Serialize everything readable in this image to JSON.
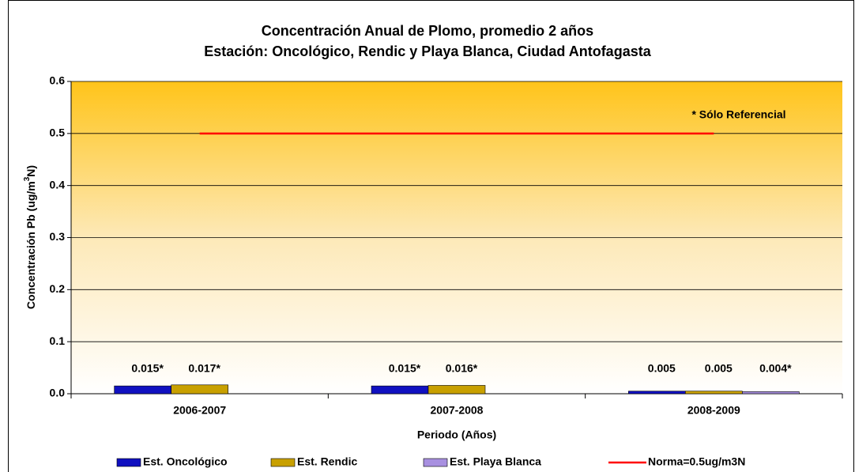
{
  "chart_data": {
    "type": "bar",
    "title": "Concentración Anual de Plomo, promedio 2 años",
    "subtitle": "Estación: Oncológico, Rendic y Playa Blanca, Ciudad Antofagasta",
    "x_label": "Periodo (Años)",
    "y_label": [
      "Concentración Pb (ug/m",
      "3",
      "N)"
    ],
    "annotation": "* Sólo Referencial",
    "categories": [
      "2006-2007",
      "2007-2008",
      "2008-2009"
    ],
    "series": [
      {
        "name": "Est. Oncológico",
        "color": "#1010c0",
        "label_color": "#1f3fd6",
        "values": [
          0.015,
          0.015,
          0.005
        ],
        "value_labels": [
          "0.015*",
          "0.015*",
          "0.005"
        ]
      },
      {
        "name": "Est. Rendic",
        "color": "#c8a000",
        "label_color": "#f01818",
        "values": [
          0.017,
          0.016,
          0.005
        ],
        "value_labels": [
          "0.017*",
          "0.016*",
          "0.005"
        ]
      },
      {
        "name": "Est. Playa Blanca",
        "color": "#a890e0",
        "label_color": "#f01818",
        "values": [
          null,
          null,
          0.004
        ],
        "value_labels": [
          null,
          null,
          "0.004*"
        ]
      },
      {
        "name": "Norma=0.5ug/m3N",
        "type": "line",
        "color": "#ff0000",
        "values": [
          0.5,
          0.5,
          0.5
        ]
      }
    ],
    "ylim": [
      0,
      0.6
    ],
    "yticks": [
      {
        "value": 0,
        "label": "0.0"
      },
      0.1,
      0.2,
      0.3,
      0.4,
      0.5,
      0.6
    ],
    "grid": true,
    "legend": "bottom"
  }
}
